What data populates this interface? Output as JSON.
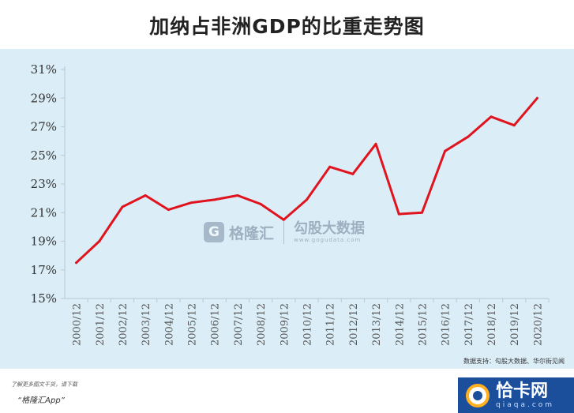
{
  "title": "加纳占非洲GDP的比重走势图",
  "source": "数据支持：勾股大数据、华尔街见闻",
  "watermark": {
    "logo_letter": "G",
    "brand": "格隆汇",
    "brand2": "勾股大数据",
    "url": "www.gogudata.com"
  },
  "footer": {
    "line1": "了解更多图文干货，请下载",
    "line2": "“格隆汇App”"
  },
  "badge": {
    "title": "恰卡网",
    "url": "qiaqa.com"
  },
  "chart_data": {
    "type": "line",
    "title": "加纳占非洲GDP的比重走势图",
    "xlabel": "",
    "ylabel": "",
    "categories": [
      "2000/12",
      "2001/12",
      "2002/12",
      "2003/12",
      "2004/12",
      "2005/12",
      "2006/12",
      "2007/12",
      "2008/12",
      "2009/12",
      "2010/12",
      "2011/12",
      "2012/12",
      "2013/12",
      "2014/12",
      "2015/12",
      "2016/12",
      "2017/12",
      "2018/12",
      "2019/12",
      "2020/12"
    ],
    "values": [
      17.5,
      19.0,
      21.4,
      22.2,
      21.2,
      21.7,
      21.9,
      22.2,
      21.6,
      20.5,
      21.9,
      24.2,
      23.7,
      25.8,
      20.9,
      21.0,
      25.3,
      26.3,
      27.7,
      27.1,
      29.0
    ],
    "y_ticks": [
      "15%",
      "17%",
      "19%",
      "21%",
      "23%",
      "25%",
      "27%",
      "29%",
      "31%"
    ],
    "ylim": [
      15,
      31
    ],
    "grid": false,
    "line_color": "#e0141e",
    "axis_color": "#bfcdd6"
  }
}
